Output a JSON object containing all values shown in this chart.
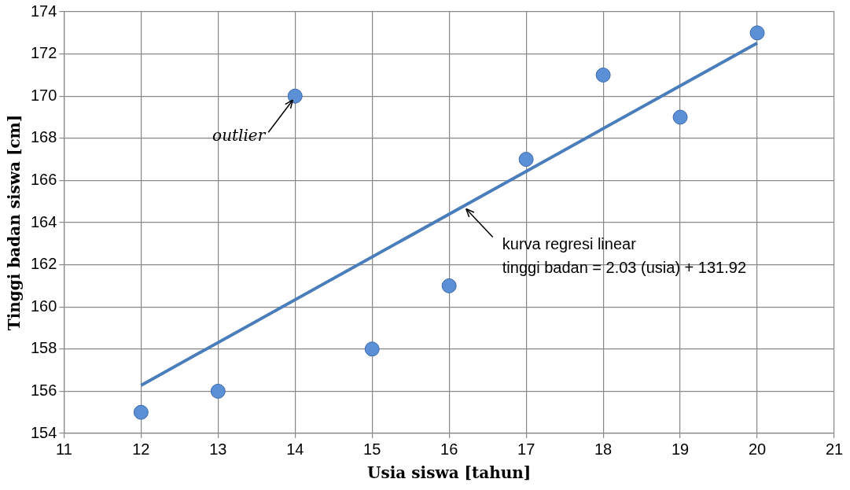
{
  "chart_data": {
    "type": "scatter",
    "xlabel": "Usia siswa [tahun]",
    "ylabel": "Tinggi badan siswa [cm]",
    "xlim": [
      11,
      21
    ],
    "xticks": [
      11,
      12,
      13,
      14,
      15,
      16,
      17,
      18,
      19,
      20,
      21
    ],
    "ylim": [
      154,
      174
    ],
    "yticks": [
      154,
      156,
      158,
      160,
      162,
      164,
      166,
      168,
      170,
      172,
      174
    ],
    "grid": true,
    "legend": false,
    "marker": "circle",
    "series": [
      {
        "color": "#5b8fd6",
        "x": [
          12,
          13,
          14,
          15,
          16,
          17,
          18,
          19,
          20
        ],
        "values": [
          155,
          156,
          170,
          158,
          161,
          167,
          171,
          169,
          173
        ]
      },
      {
        "type": "line",
        "color": "#4a7ebb",
        "x": [
          12,
          20
        ],
        "values": [
          156.28,
          172.52
        ],
        "marker": "none",
        "line_style": "solid"
      }
    ],
    "annotations": [
      {
        "text": "outlier",
        "x": 14,
        "y": 170
      },
      {
        "text": "kurva regresi linear\ntinggi badan = 2.03 (usia) + 131.92",
        "x": 16.2,
        "y": 164.8
      }
    ]
  }
}
